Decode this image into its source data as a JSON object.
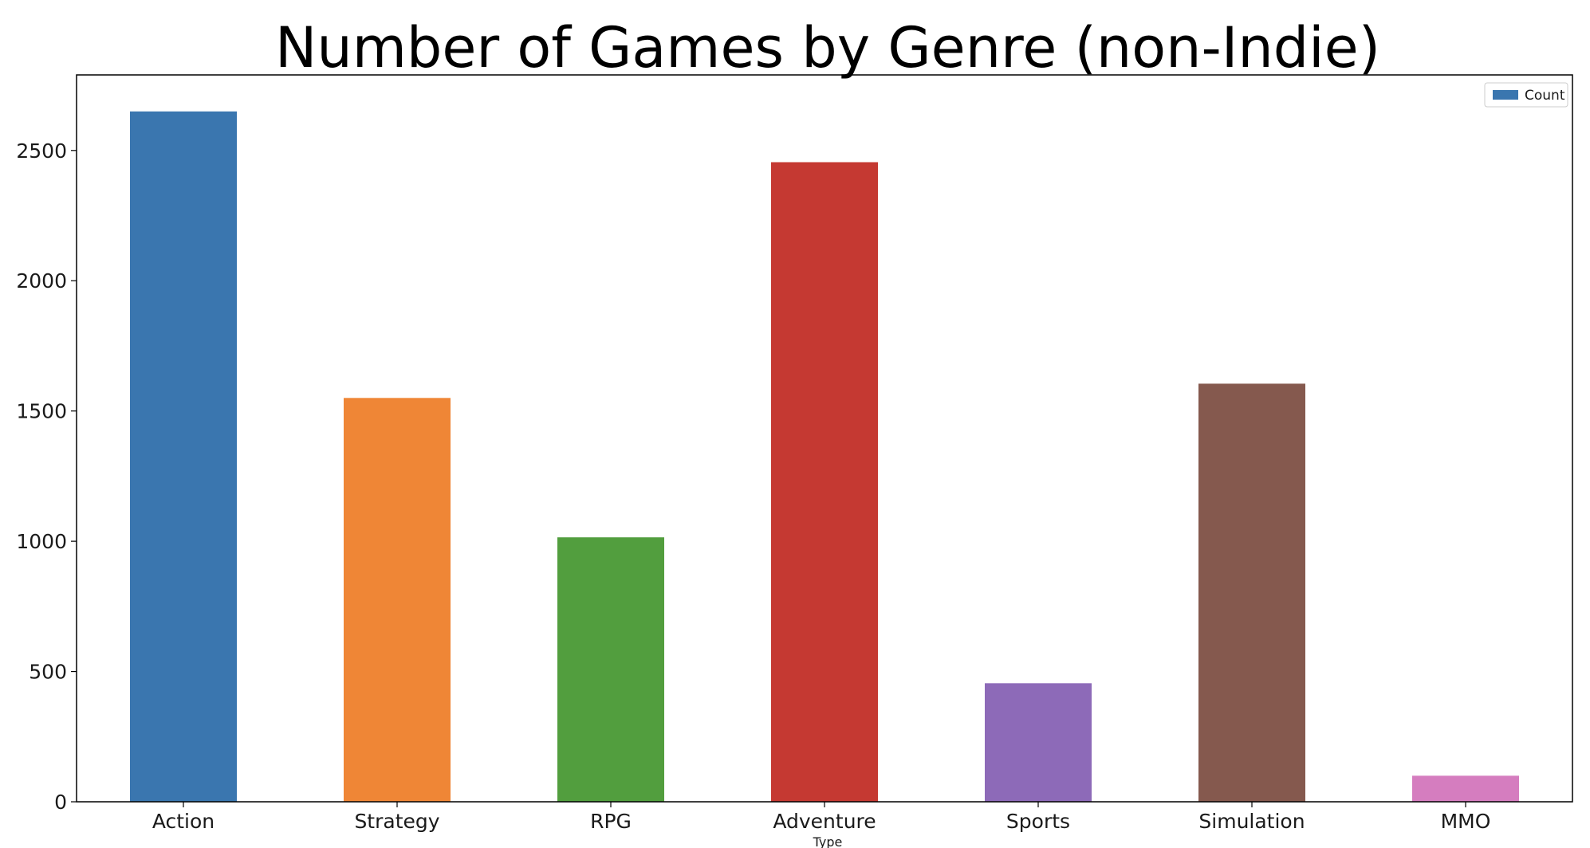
{
  "chart_data": {
    "type": "bar",
    "title": "Number of Games by Genre (non-Indie)",
    "xlabel": "Type",
    "ylabel": "",
    "categories": [
      "Action",
      "Strategy",
      "RPG",
      "Adventure",
      "Sports",
      "Simulation",
      "MMO"
    ],
    "series": [
      {
        "name": "Count",
        "values": [
          2650,
          1550,
          1015,
          2455,
          455,
          1605,
          100
        ]
      }
    ],
    "bar_colors": [
      "#3a76af",
      "#ef8636",
      "#529e3e",
      "#c53932",
      "#8d6ab8",
      "#85594e",
      "#d57dbf"
    ],
    "legend_color": "#3a76af",
    "ylim": [
      0,
      2790
    ],
    "yticks": [
      0,
      500,
      1000,
      1500,
      2000,
      2500
    ],
    "grid": false,
    "legend_position": "top-right"
  }
}
